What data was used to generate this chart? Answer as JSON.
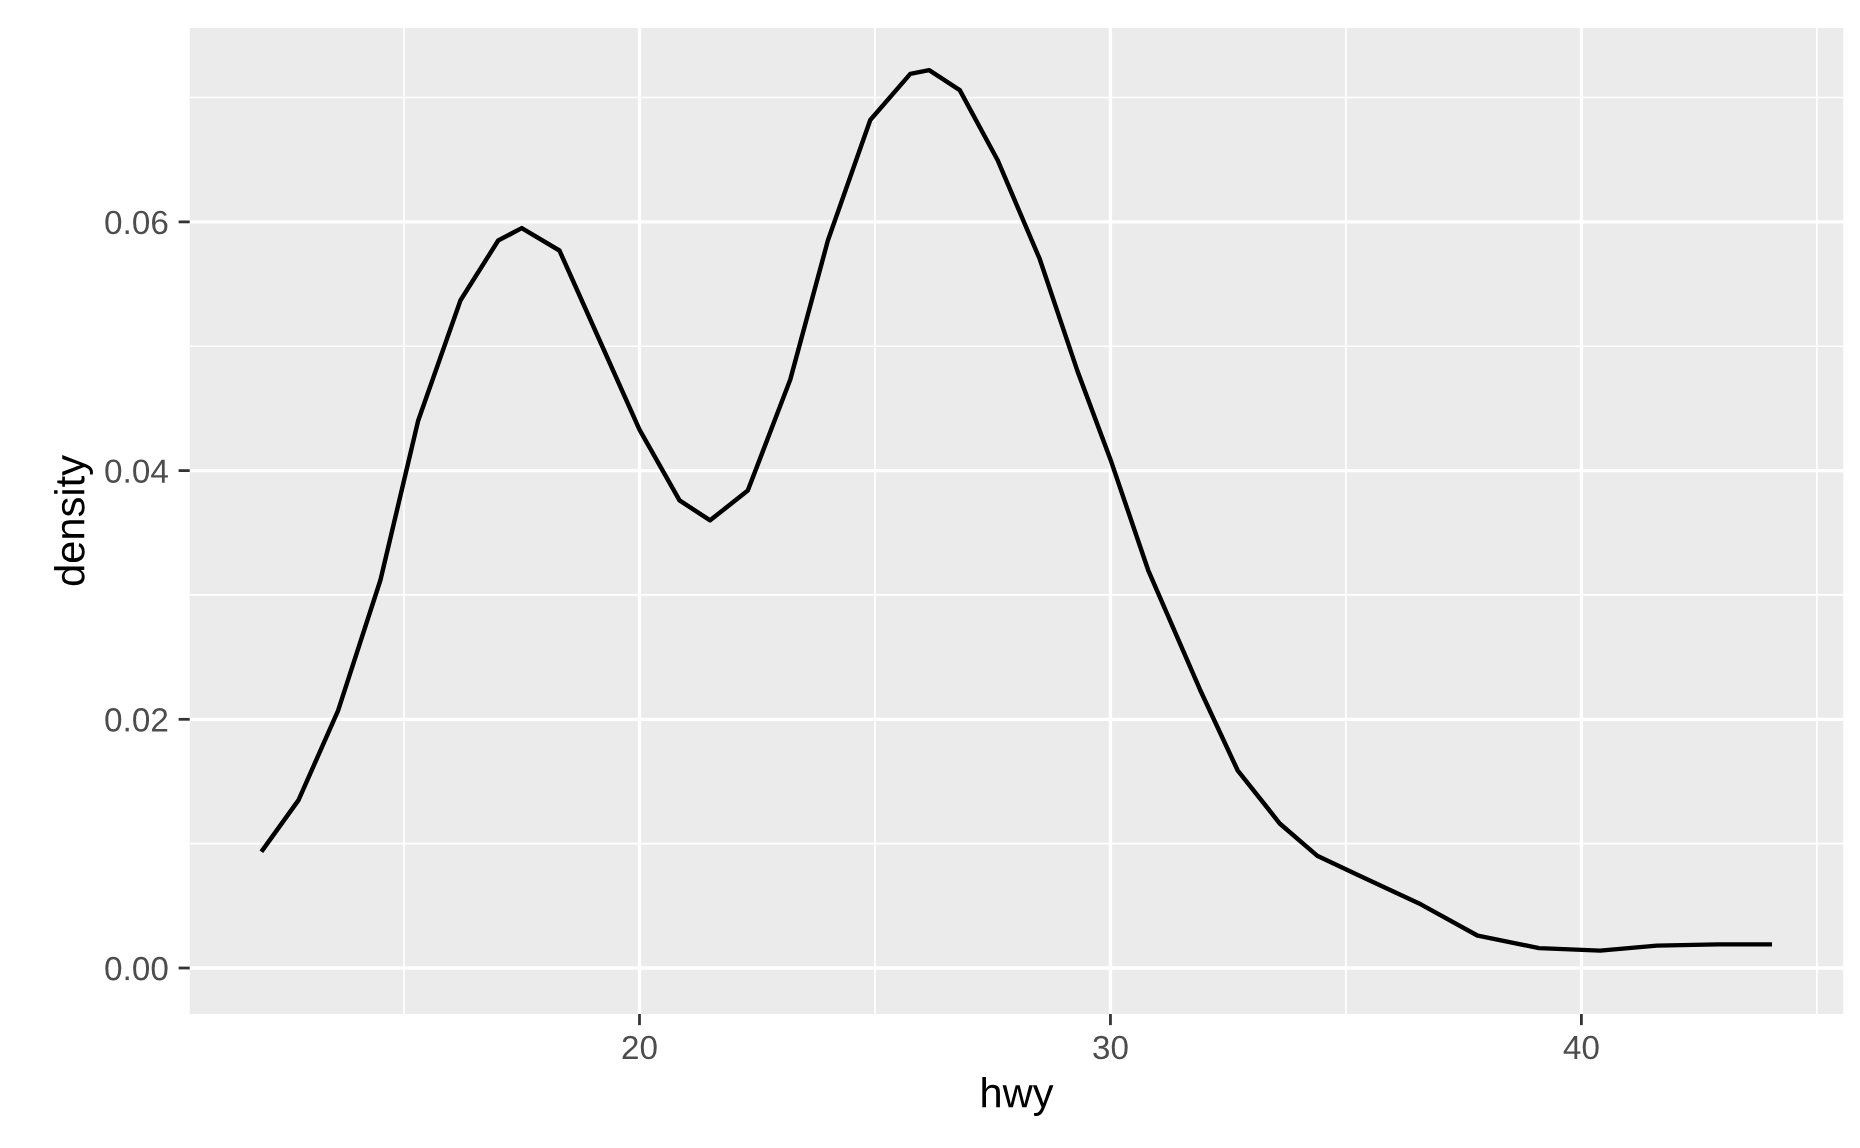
{
  "chart_data": {
    "type": "line",
    "xlabel": "hwy",
    "ylabel": "density",
    "xlim": [
      10.45,
      45.56
    ],
    "ylim": [
      -0.0037,
      0.0756
    ],
    "xticks": [
      20,
      30,
      40
    ],
    "yticks": [
      {
        "value": 0,
        "label": "0.00"
      },
      {
        "value": 0.02,
        "label": "0.02"
      },
      {
        "value": 0.04,
        "label": "0.04"
      },
      {
        "value": 0.06,
        "label": "0.06"
      }
    ],
    "grid": true,
    "series": [
      {
        "color": "#000000",
        "x": [
          12.0,
          12.76,
          13.6,
          14.5,
          15.3,
          16.2,
          17.0,
          17.5,
          18.3,
          19.15,
          20.0,
          20.85,
          21.5,
          22.3,
          23.2,
          24.0,
          24.9,
          25.75,
          26.15,
          26.8,
          27.6,
          28.5,
          29.3,
          30.0,
          30.8,
          31.9,
          32.7,
          33.6,
          34.4,
          35.3,
          36.6,
          37.8,
          39.1,
          40.4,
          41.6,
          42.9,
          44.0
        ],
        "values": [
          0.0095,
          0.0135,
          0.0207,
          0.0312,
          0.044,
          0.0537,
          0.0585,
          0.0595,
          0.0577,
          0.0505,
          0.0433,
          0.0376,
          0.036,
          0.0384,
          0.0473,
          0.0585,
          0.0682,
          0.0719,
          0.0722,
          0.0706,
          0.065,
          0.057,
          0.048,
          0.0409,
          0.032,
          0.0224,
          0.0159,
          0.0116,
          0.009,
          0.0074,
          0.0051,
          0.0026,
          0.0016,
          0.0014,
          0.0018,
          0.0019,
          0.0019
        ]
      }
    ]
  }
}
